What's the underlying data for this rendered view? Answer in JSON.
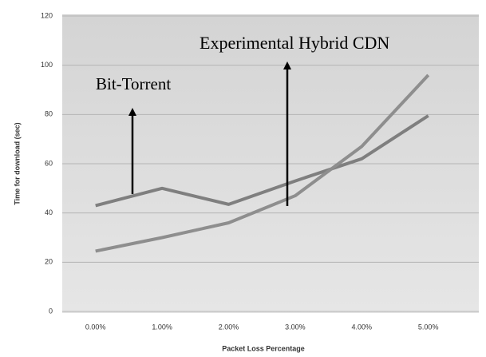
{
  "chart_data": {
    "type": "line",
    "x_label": "Packet Loss Percentage",
    "y_label": "Time for download (sec)",
    "categories": [
      "0.00%",
      "1.00%",
      "2.00%",
      "3.00%",
      "4.00%",
      "5.00%"
    ],
    "series": [
      {
        "name": "Bit-Torrent",
        "color": "#7f7f7f",
        "values": [
          43,
          50,
          43.5,
          53,
          62,
          79.5
        ]
      },
      {
        "name": "Experimental Hybrid CDN",
        "color": "#8e8e8e",
        "values": [
          24.5,
          30,
          36,
          47,
          67,
          96
        ]
      }
    ],
    "ylim": [
      0,
      120
    ],
    "yticks": [
      0,
      20,
      40,
      60,
      80,
      100,
      120
    ],
    "grid": true
  }
}
